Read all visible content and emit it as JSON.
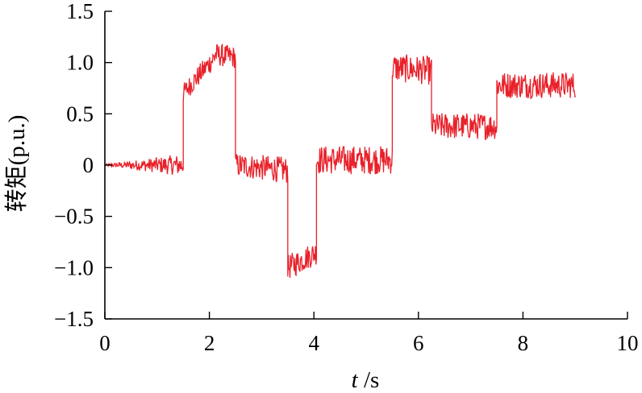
{
  "chart_data": {
    "type": "line",
    "title": "",
    "xlabel_italic": "t",
    "xlabel_unit": " /s",
    "ylabel": "转矩(p.u.)",
    "xlim": [
      0,
      10
    ],
    "ylim": [
      -1.5,
      1.5
    ],
    "x_ticks": [
      0,
      2,
      4,
      6,
      8,
      10
    ],
    "y_ticks": [
      1.5,
      1.0,
      0.5,
      0,
      -0.5,
      -1.0,
      -1.5
    ],
    "y_tick_labels": [
      "1.5",
      "1.0",
      "0.5",
      "0",
      "−0.5",
      "−1.0",
      "−1.5"
    ],
    "grid": false,
    "line_color": "#e8212a",
    "series": [
      {
        "segments": [
          {
            "t_start": 0.0,
            "t_end": 1.5,
            "center_start": 0.0,
            "center_end": 0.0,
            "band_start": 0.02,
            "band_end": 0.22
          },
          {
            "t_start": 1.5,
            "t_end": 2.1,
            "center_start": 0.7,
            "center_end": 1.05,
            "band_start": 0.2,
            "band_end": 0.22
          },
          {
            "t_start": 2.1,
            "t_end": 2.5,
            "center_start": 1.08,
            "center_end": 1.05,
            "band_start": 0.22,
            "band_end": 0.22
          },
          {
            "t_start": 2.5,
            "t_end": 3.5,
            "center_start": 0.0,
            "center_end": -0.05,
            "band_start": 0.24,
            "band_end": 0.26
          },
          {
            "t_start": 3.5,
            "t_end": 4.05,
            "center_start": -1.0,
            "center_end": -0.85,
            "band_start": 0.25,
            "band_end": 0.24
          },
          {
            "t_start": 4.05,
            "t_end": 5.5,
            "center_start": 0.05,
            "center_end": 0.05,
            "band_start": 0.28,
            "band_end": 0.28
          },
          {
            "t_start": 5.5,
            "t_end": 6.25,
            "center_start": 0.95,
            "center_end": 0.92,
            "band_start": 0.28,
            "band_end": 0.28
          },
          {
            "t_start": 6.25,
            "t_end": 7.5,
            "center_start": 0.38,
            "center_end": 0.38,
            "band_start": 0.26,
            "band_end": 0.26
          },
          {
            "t_start": 7.5,
            "t_end": 9.0,
            "center_start": 0.78,
            "center_end": 0.78,
            "band_start": 0.26,
            "band_end": 0.26
          }
        ]
      }
    ]
  }
}
